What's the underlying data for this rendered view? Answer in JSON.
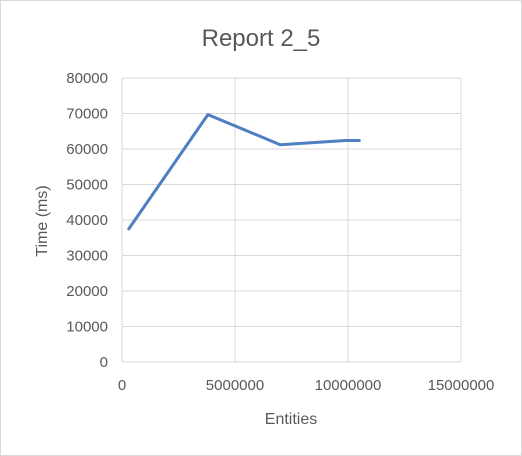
{
  "chart_data": {
    "type": "line",
    "title": "Report 2_5",
    "xlabel": "Entities",
    "ylabel": "Time (ms)",
    "xlim": [
      0,
      15000000
    ],
    "ylim": [
      0,
      80000
    ],
    "x_ticks": [
      0,
      5000000,
      10000000,
      15000000
    ],
    "x_tick_labels": [
      "0",
      "5000000",
      "10000000",
      "15000000"
    ],
    "y_ticks": [
      0,
      10000,
      20000,
      30000,
      40000,
      50000,
      60000,
      70000,
      80000
    ],
    "y_tick_labels": [
      "0",
      "10000",
      "20000",
      "30000",
      "40000",
      "50000",
      "60000",
      "70000",
      "80000"
    ],
    "grid": true,
    "legend": "none",
    "series": [
      {
        "color": "#4f7fbf",
        "x": [
          300000,
          3800000,
          7000000,
          9900000,
          10500000
        ],
        "y": [
          37500,
          69700,
          61200,
          62400,
          62400
        ]
      }
    ]
  }
}
